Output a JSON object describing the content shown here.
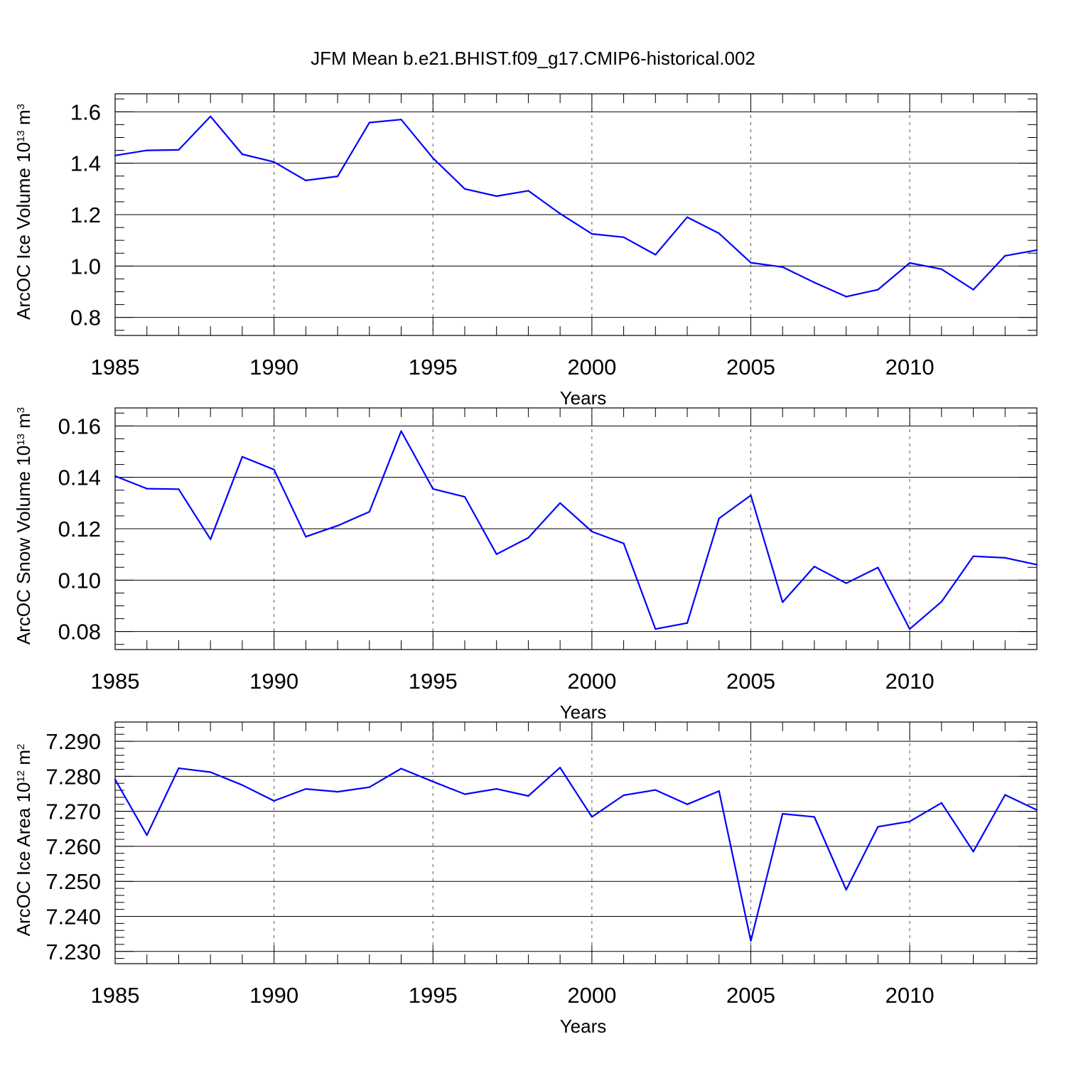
{
  "title": "JFM Mean b.e21.BHIST.f09_g17.CMIP6-historical.002",
  "colors": {
    "line": "#0000ff",
    "axis": "#000000",
    "grid": "#555555"
  },
  "chart_data": [
    {
      "type": "line",
      "xlabel": "Years",
      "ylabel_main": "ArcOC Ice Volume 10",
      "ylabel_exp": "13",
      "ylabel_unit": " m",
      "ylabel_unit_exp": "3",
      "xlim": [
        1985,
        2014
      ],
      "ylim": [
        0.73,
        1.67
      ],
      "x_ticks": [
        1985,
        1990,
        1995,
        2000,
        2005,
        2010
      ],
      "x_tick_labels": [
        "1985",
        "1990",
        "1995",
        "2000",
        "2005",
        "2010"
      ],
      "y_ticks": [
        0.8,
        1.0,
        1.2,
        1.4,
        1.6
      ],
      "y_tick_labels": [
        "0.8",
        "1.0",
        "1.2",
        "1.4",
        "1.6"
      ],
      "x": [
        1985,
        1986,
        1987,
        1988,
        1989,
        1990,
        1991,
        1992,
        1993,
        1994,
        1995,
        1996,
        1997,
        1998,
        1999,
        2000,
        2001,
        2002,
        2003,
        2004,
        2005,
        2006,
        2007,
        2008,
        2009,
        2010,
        2011,
        2012,
        2013,
        2014
      ],
      "values": [
        1.43,
        1.45,
        1.452,
        1.582,
        1.435,
        1.405,
        1.333,
        1.349,
        1.558,
        1.57,
        1.42,
        1.3,
        1.272,
        1.293,
        1.204,
        1.125,
        1.112,
        1.044,
        1.19,
        1.127,
        1.013,
        0.996,
        0.936,
        0.881,
        0.908,
        1.012,
        0.988,
        0.908,
        1.04,
        1.062
      ]
    },
    {
      "type": "line",
      "xlabel": "Years",
      "ylabel_main": "ArcOC Snow Volume 10",
      "ylabel_exp": "13",
      "ylabel_unit": " m",
      "ylabel_unit_exp": "3",
      "xlim": [
        1985,
        2014
      ],
      "ylim": [
        0.073,
        0.167
      ],
      "x_ticks": [
        1985,
        1990,
        1995,
        2000,
        2005,
        2010
      ],
      "x_tick_labels": [
        "1985",
        "1990",
        "1995",
        "2000",
        "2005",
        "2010"
      ],
      "y_ticks": [
        0.08,
        0.1,
        0.12,
        0.14,
        0.16
      ],
      "y_tick_labels": [
        "0.08",
        "0.10",
        "0.12",
        "0.14",
        "0.16"
      ],
      "x": [
        1985,
        1986,
        1987,
        1988,
        1989,
        1990,
        1991,
        1992,
        1993,
        1994,
        1995,
        1996,
        1997,
        1998,
        1999,
        2000,
        2001,
        2002,
        2003,
        2004,
        2005,
        2006,
        2007,
        2008,
        2009,
        2010,
        2011,
        2012,
        2013,
        2014
      ],
      "values": [
        0.1405,
        0.1356,
        0.1354,
        0.1159,
        0.148,
        0.143,
        0.1169,
        0.1212,
        0.1266,
        0.158,
        0.1355,
        0.1324,
        0.1101,
        0.1165,
        0.13,
        0.1189,
        0.1143,
        0.081,
        0.0833,
        0.124,
        0.133,
        0.0914,
        0.1053,
        0.0988,
        0.1049,
        0.081,
        0.0916,
        0.1093,
        0.1087,
        0.106
      ]
    },
    {
      "type": "line",
      "xlabel": "Years",
      "ylabel_main": "ArcOC Ice Area 10",
      "ylabel_exp": "12",
      "ylabel_unit": " m",
      "ylabel_unit_exp": "2",
      "xlim": [
        1985,
        2014
      ],
      "ylim": [
        7.2265,
        7.2955
      ],
      "x_ticks": [
        1985,
        1990,
        1995,
        2000,
        2005,
        2010
      ],
      "x_tick_labels": [
        "1985",
        "1990",
        "1995",
        "2000",
        "2005",
        "2010"
      ],
      "y_ticks": [
        7.23,
        7.24,
        7.25,
        7.26,
        7.27,
        7.28,
        7.29
      ],
      "y_tick_labels": [
        "7.230",
        "7.240",
        "7.250",
        "7.260",
        "7.270",
        "7.280",
        "7.290"
      ],
      "x": [
        1985,
        1986,
        1987,
        1988,
        1989,
        1990,
        1991,
        1992,
        1993,
        1994,
        1995,
        1996,
        1997,
        1998,
        1999,
        2000,
        2001,
        2002,
        2003,
        2004,
        2005,
        2006,
        2007,
        2008,
        2009,
        2010,
        2011,
        2012,
        2013,
        2014
      ],
      "values": [
        7.2791,
        7.2632,
        7.2823,
        7.2812,
        7.2775,
        7.273,
        7.2764,
        7.2756,
        7.2769,
        7.2822,
        7.2785,
        7.2749,
        7.2764,
        7.2744,
        7.2825,
        7.2684,
        7.2746,
        7.2761,
        7.272,
        7.2758,
        7.233,
        7.2693,
        7.2684,
        7.2476,
        7.2656,
        7.2671,
        7.2724,
        7.2585,
        7.2747,
        7.2704
      ]
    }
  ]
}
